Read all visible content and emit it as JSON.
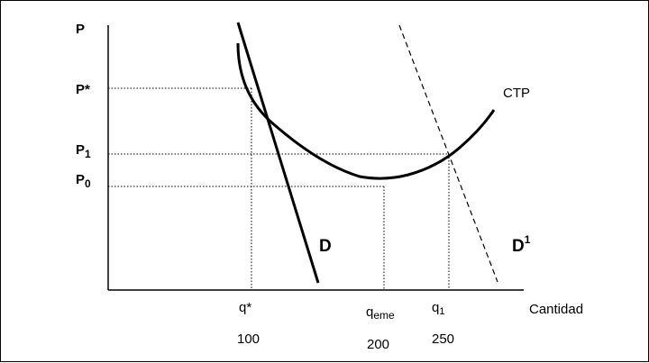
{
  "axes": {
    "y_label": "P",
    "x_label": "Cantidad"
  },
  "price_labels": {
    "p_star": "P*",
    "p1_base": "P",
    "p1_sub": "1",
    "p0_base": "P",
    "p0_sub": "0"
  },
  "quantity_labels": {
    "q_star": "q*",
    "q_eme_base": "q",
    "q_eme_sub": "eme",
    "q1_base": "q",
    "q1_sub": "1"
  },
  "quantity_values": {
    "q_star": "100",
    "q_eme": "200",
    "q1": "250"
  },
  "curve_labels": {
    "ctp": "CTP",
    "d": "D",
    "d1_base": "D",
    "d1_sup": "1"
  }
}
